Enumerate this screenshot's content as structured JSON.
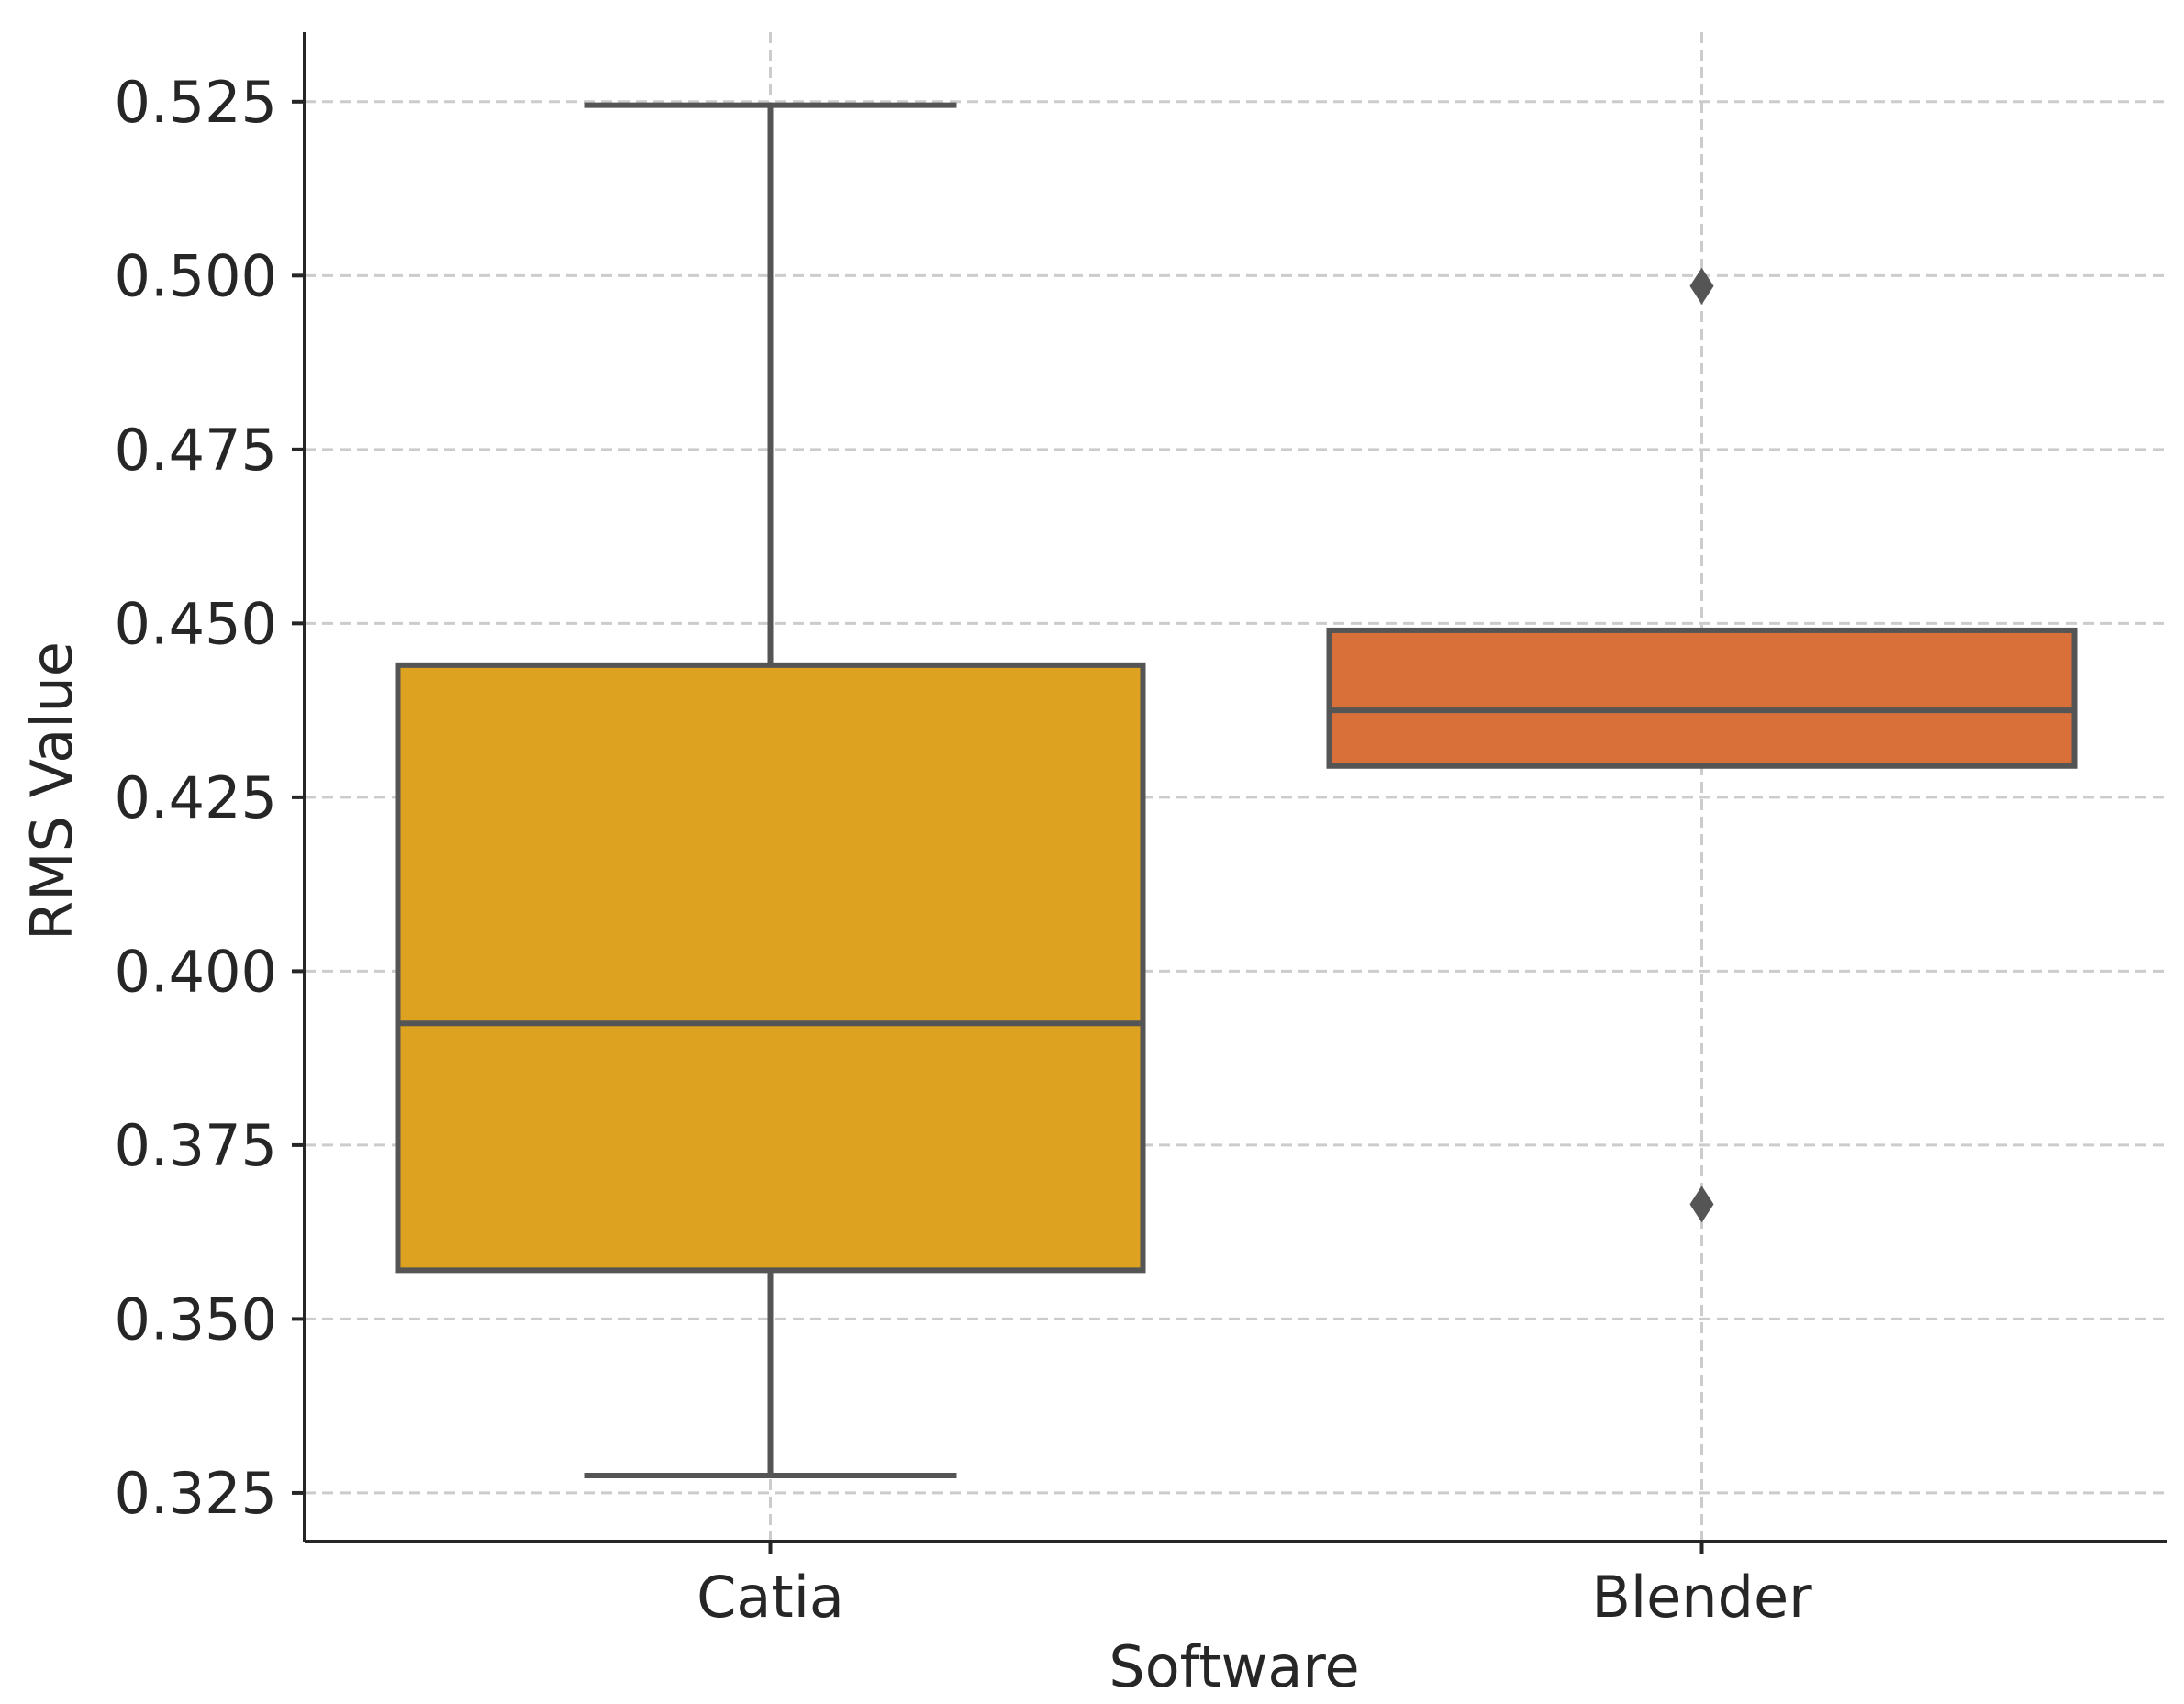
{
  "chart_data": {
    "type": "box",
    "title": "",
    "xlabel": "Software",
    "ylabel": "RMS Value",
    "categories": [
      "Catia",
      "Blender"
    ],
    "ylim": [
      0.318,
      0.535
    ],
    "yticks": [
      0.325,
      0.35,
      0.375,
      0.4,
      0.425,
      0.45,
      0.475,
      0.5,
      0.525
    ],
    "ytick_labels": [
      "0.325",
      "0.350",
      "0.375",
      "0.400",
      "0.425",
      "0.450",
      "0.475",
      "0.500",
      "0.525"
    ],
    "grid": true,
    "boxes": [
      {
        "category": "Catia",
        "whisker_low": 0.3275,
        "q1": 0.357,
        "median": 0.3925,
        "q3": 0.444,
        "whisker_high": 0.5245,
        "outliers": [],
        "color": "#DDA220"
      },
      {
        "category": "Blender",
        "whisker_low": 0.4295,
        "q1": 0.4295,
        "median": 0.4375,
        "q3": 0.449,
        "whisker_high": 0.449,
        "outliers": [
          0.4985,
          0.3665
        ],
        "color": "#D9703A"
      }
    ],
    "colors": {
      "line": "#555555",
      "grid": "#cccccc",
      "axis": "#262626",
      "text": "#262626"
    }
  }
}
